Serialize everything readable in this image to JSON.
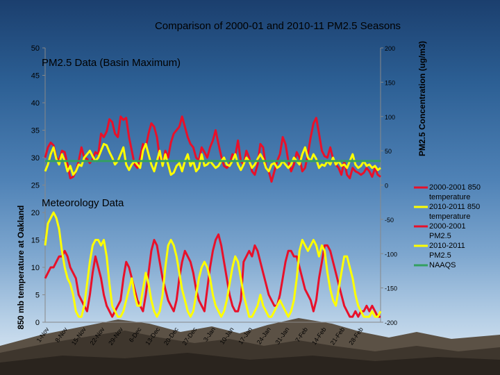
{
  "chart_data": {
    "type": "line",
    "title": "Comparison of 2000-01 and 2010-11 PM2.5 Seasons",
    "annotations": [
      "PM2.5 Data (Basin Maximum)",
      "Meteorology Data"
    ],
    "ylabel_left": "850 mb temperature at Oakland",
    "ylabel_right": "PM2.5 Concentration (ug/m3)",
    "left_axis": {
      "range": [
        0,
        50
      ],
      "ticks": [
        "0",
        "5",
        "10",
        "15",
        "20",
        "25",
        "30",
        "35",
        "40",
        "45",
        "50"
      ]
    },
    "right_axis": {
      "range": [
        -200,
        200
      ],
      "ticks": [
        "-200",
        "-150",
        "-100",
        "-50",
        "0",
        "50",
        "100",
        "150",
        "200"
      ]
    },
    "x_tick_labels": [
      "1-Nov",
      "8-Nov",
      "15-Nov",
      "22-Nov",
      "29-Nov",
      "6-Dec",
      "13-Dec",
      "20-Dec",
      "27-Dec",
      "3-Jan",
      "10-Jan",
      "17-Jan",
      "24-Jan",
      "31-Jan",
      "7-Feb",
      "14-Feb",
      "21-Feb",
      "28-Feb"
    ],
    "legend": {
      "placement": "right",
      "entries": [
        "2000-2001 850 temperature",
        "2010-2011 850 temperature",
        "2000-2001 PM2.5",
        "2010-2011 PM2.5",
        "NAAQS"
      ]
    },
    "grid": false,
    "x_count": 121,
    "series": [
      {
        "name": "2000-2001 850 temperature",
        "axis": "left",
        "color": "#e8102a",
        "values": [
          8,
          9,
          10,
          10,
          11,
          12,
          12,
          13,
          12,
          10,
          9,
          8,
          5,
          4,
          3,
          2,
          5,
          9,
          12,
          10,
          8,
          5,
          3,
          2,
          1,
          2,
          3,
          4,
          8,
          11,
          10,
          8,
          6,
          4,
          3,
          2,
          5,
          9,
          13,
          15,
          14,
          11,
          8,
          6,
          4,
          3,
          2,
          4,
          8,
          11,
          13,
          12,
          11,
          9,
          6,
          4,
          3,
          2,
          6,
          10,
          13,
          15,
          16,
          14,
          11,
          8,
          5,
          3,
          2,
          2,
          4,
          11,
          12,
          13,
          12,
          14,
          13,
          11,
          9,
          7,
          5,
          4,
          3,
          3,
          5,
          8,
          11,
          13,
          13,
          12,
          12,
          10,
          8,
          6,
          5,
          4,
          2,
          4,
          8,
          11,
          14,
          14,
          13,
          11,
          9,
          7,
          5,
          3,
          2,
          1,
          1,
          2,
          1,
          2,
          2,
          3,
          2,
          3,
          2,
          1,
          1
        ]
      },
      {
        "name": "2010-2011 850 temperature",
        "axis": "left",
        "color": "#ffff00",
        "values": [
          14,
          18,
          19,
          20,
          19,
          17,
          13,
          10,
          8,
          7,
          5,
          2,
          1,
          1,
          3,
          7,
          11,
          14,
          15,
          15,
          14,
          15,
          12,
          7,
          3,
          2,
          1,
          1,
          2,
          4,
          6,
          8,
          5,
          3,
          3,
          6,
          9,
          7,
          4,
          2,
          1,
          2,
          5,
          10,
          14,
          15,
          14,
          12,
          9,
          6,
          4,
          2,
          1,
          2,
          5,
          8,
          10,
          11,
          10,
          8,
          5,
          3,
          2,
          1,
          2,
          4,
          7,
          10,
          12,
          11,
          8,
          5,
          3,
          1,
          1,
          2,
          3,
          5,
          3,
          2,
          1,
          1,
          2,
          3,
          4,
          3,
          2,
          1,
          2,
          4,
          8,
          13,
          15,
          14,
          13,
          14,
          15,
          14,
          12,
          14,
          13,
          9,
          6,
          4,
          3,
          6,
          9,
          12,
          12,
          10,
          8,
          5,
          3,
          2,
          1,
          1,
          1,
          2,
          1,
          1,
          2
        ]
      },
      {
        "name": "2000-2001 PM2.5",
        "axis": "right",
        "color": "#e8102a",
        "values": [
          40,
          55,
          62,
          58,
          40,
          35,
          50,
          48,
          30,
          10,
          12,
          20,
          35,
          55,
          40,
          38,
          32,
          38,
          48,
          45,
          75,
          70,
          78,
          96,
          92,
          75,
          70,
          100,
          95,
          98,
          70,
          50,
          30,
          25,
          40,
          60,
          55,
          75,
          90,
          85,
          70,
          40,
          30,
          50,
          40,
          62,
          75,
          80,
          85,
          100,
          85,
          70,
          60,
          55,
          40,
          36,
          55,
          48,
          40,
          55,
          65,
          80,
          60,
          42,
          28,
          25,
          30,
          45,
          42,
          65,
          35,
          30,
          50,
          40,
          20,
          15,
          30,
          60,
          55,
          25,
          20,
          5,
          20,
          35,
          45,
          70,
          60,
          35,
          20,
          30,
          48,
          40,
          20,
          25,
          45,
          70,
          90,
          98,
          75,
          50,
          42,
          40,
          55,
          38,
          30,
          25,
          15,
          35,
          15,
          10,
          25,
          20,
          18,
          15,
          18,
          25,
          20,
          12,
          25,
          15,
          12
        ]
      },
      {
        "name": "2010-2011 PM2.5",
        "axis": "right",
        "color": "#ffff00",
        "values": [
          20,
          30,
          45,
          55,
          38,
          30,
          45,
          35,
          20,
          28,
          15,
          20,
          30,
          28,
          40,
          45,
          50,
          42,
          35,
          40,
          50,
          60,
          58,
          48,
          40,
          30,
          35,
          45,
          55,
          30,
          22,
          30,
          35,
          30,
          25,
          50,
          60,
          45,
          30,
          20,
          35,
          50,
          28,
          45,
          30,
          15,
          18,
          28,
          32,
          20,
          35,
          45,
          28,
          35,
          20,
          25,
          45,
          28,
          30,
          35,
          30,
          25,
          28,
          35,
          40,
          30,
          28,
          35,
          45,
          30,
          22,
          30,
          40,
          35,
          25,
          30,
          38,
          45,
          38,
          25,
          20,
          30,
          32,
          25,
          28,
          35,
          30,
          25,
          30,
          40,
          35,
          30,
          45,
          55,
          40,
          35,
          45,
          38,
          25,
          30,
          28,
          35,
          30,
          40,
          30,
          35,
          28,
          30,
          25,
          35,
          45,
          30,
          25,
          28,
          35,
          28,
          30,
          25,
          28,
          22,
          25
        ]
      },
      {
        "name": "NAAQS",
        "axis": "right",
        "color": "#33a060",
        "values": [
          35,
          35,
          35,
          35,
          35,
          35,
          35,
          35,
          35,
          35,
          35,
          35,
          35,
          35,
          35,
          35,
          35,
          35,
          35,
          35,
          35,
          35,
          35,
          35,
          35,
          35,
          35,
          35,
          35,
          35,
          35,
          35,
          35,
          35,
          35,
          35,
          35,
          35,
          35,
          35,
          35,
          35,
          35,
          35,
          35,
          35,
          35,
          35,
          35,
          35,
          35,
          35,
          35,
          35,
          35,
          35,
          35,
          35,
          35,
          35,
          35,
          35,
          35,
          35,
          35,
          35,
          35,
          35,
          35,
          35,
          35,
          35,
          35,
          35,
          35,
          35,
          35,
          35,
          35,
          35,
          35,
          35,
          35,
          35,
          35,
          35,
          35,
          35,
          35,
          35,
          35,
          35,
          35,
          35,
          35,
          35,
          35,
          35,
          35,
          35,
          35,
          35,
          35,
          35,
          35,
          35,
          35,
          35,
          35,
          35,
          35,
          35,
          35,
          35,
          35,
          35,
          35,
          35,
          35,
          35,
          35
        ]
      }
    ]
  }
}
